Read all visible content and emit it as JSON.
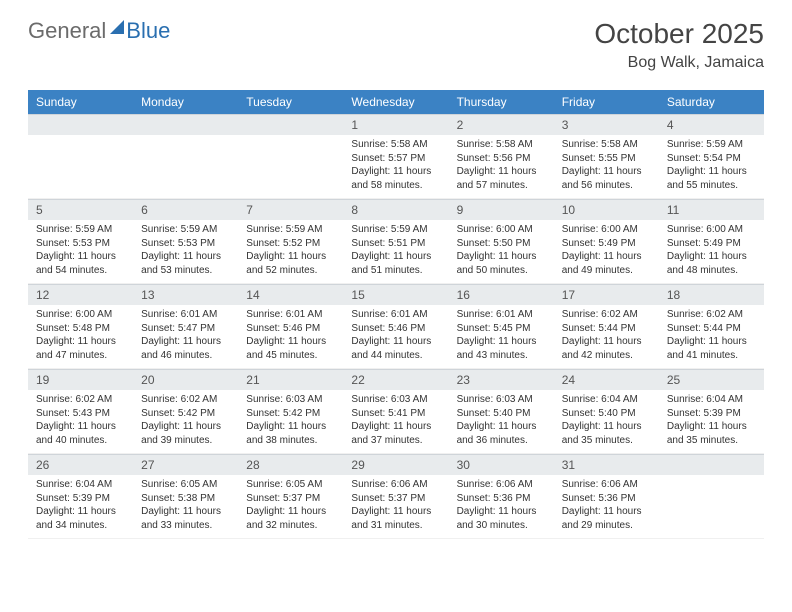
{
  "branding": {
    "word1": "General",
    "word2": "Blue"
  },
  "header": {
    "monthTitle": "October 2025",
    "location": "Bog Walk, Jamaica"
  },
  "colors": {
    "headerBlue": "#3b82c4",
    "lightGray": "#e8ebed",
    "brandBlue": "#2a6fb0",
    "textGray": "#6b6b6b"
  },
  "dayHeaders": [
    "Sunday",
    "Monday",
    "Tuesday",
    "Wednesday",
    "Thursday",
    "Friday",
    "Saturday"
  ],
  "weeks": [
    [
      {
        "empty": true
      },
      {
        "empty": true
      },
      {
        "empty": true
      },
      {
        "num": "1",
        "sunrise": "Sunrise: 5:58 AM",
        "sunset": "Sunset: 5:57 PM",
        "daylight1": "Daylight: 11 hours",
        "daylight2": "and 58 minutes."
      },
      {
        "num": "2",
        "sunrise": "Sunrise: 5:58 AM",
        "sunset": "Sunset: 5:56 PM",
        "daylight1": "Daylight: 11 hours",
        "daylight2": "and 57 minutes."
      },
      {
        "num": "3",
        "sunrise": "Sunrise: 5:58 AM",
        "sunset": "Sunset: 5:55 PM",
        "daylight1": "Daylight: 11 hours",
        "daylight2": "and 56 minutes."
      },
      {
        "num": "4",
        "sunrise": "Sunrise: 5:59 AM",
        "sunset": "Sunset: 5:54 PM",
        "daylight1": "Daylight: 11 hours",
        "daylight2": "and 55 minutes."
      }
    ],
    [
      {
        "num": "5",
        "sunrise": "Sunrise: 5:59 AM",
        "sunset": "Sunset: 5:53 PM",
        "daylight1": "Daylight: 11 hours",
        "daylight2": "and 54 minutes."
      },
      {
        "num": "6",
        "sunrise": "Sunrise: 5:59 AM",
        "sunset": "Sunset: 5:53 PM",
        "daylight1": "Daylight: 11 hours",
        "daylight2": "and 53 minutes."
      },
      {
        "num": "7",
        "sunrise": "Sunrise: 5:59 AM",
        "sunset": "Sunset: 5:52 PM",
        "daylight1": "Daylight: 11 hours",
        "daylight2": "and 52 minutes."
      },
      {
        "num": "8",
        "sunrise": "Sunrise: 5:59 AM",
        "sunset": "Sunset: 5:51 PM",
        "daylight1": "Daylight: 11 hours",
        "daylight2": "and 51 minutes."
      },
      {
        "num": "9",
        "sunrise": "Sunrise: 6:00 AM",
        "sunset": "Sunset: 5:50 PM",
        "daylight1": "Daylight: 11 hours",
        "daylight2": "and 50 minutes."
      },
      {
        "num": "10",
        "sunrise": "Sunrise: 6:00 AM",
        "sunset": "Sunset: 5:49 PM",
        "daylight1": "Daylight: 11 hours",
        "daylight2": "and 49 minutes."
      },
      {
        "num": "11",
        "sunrise": "Sunrise: 6:00 AM",
        "sunset": "Sunset: 5:49 PM",
        "daylight1": "Daylight: 11 hours",
        "daylight2": "and 48 minutes."
      }
    ],
    [
      {
        "num": "12",
        "sunrise": "Sunrise: 6:00 AM",
        "sunset": "Sunset: 5:48 PM",
        "daylight1": "Daylight: 11 hours",
        "daylight2": "and 47 minutes."
      },
      {
        "num": "13",
        "sunrise": "Sunrise: 6:01 AM",
        "sunset": "Sunset: 5:47 PM",
        "daylight1": "Daylight: 11 hours",
        "daylight2": "and 46 minutes."
      },
      {
        "num": "14",
        "sunrise": "Sunrise: 6:01 AM",
        "sunset": "Sunset: 5:46 PM",
        "daylight1": "Daylight: 11 hours",
        "daylight2": "and 45 minutes."
      },
      {
        "num": "15",
        "sunrise": "Sunrise: 6:01 AM",
        "sunset": "Sunset: 5:46 PM",
        "daylight1": "Daylight: 11 hours",
        "daylight2": "and 44 minutes."
      },
      {
        "num": "16",
        "sunrise": "Sunrise: 6:01 AM",
        "sunset": "Sunset: 5:45 PM",
        "daylight1": "Daylight: 11 hours",
        "daylight2": "and 43 minutes."
      },
      {
        "num": "17",
        "sunrise": "Sunrise: 6:02 AM",
        "sunset": "Sunset: 5:44 PM",
        "daylight1": "Daylight: 11 hours",
        "daylight2": "and 42 minutes."
      },
      {
        "num": "18",
        "sunrise": "Sunrise: 6:02 AM",
        "sunset": "Sunset: 5:44 PM",
        "daylight1": "Daylight: 11 hours",
        "daylight2": "and 41 minutes."
      }
    ],
    [
      {
        "num": "19",
        "sunrise": "Sunrise: 6:02 AM",
        "sunset": "Sunset: 5:43 PM",
        "daylight1": "Daylight: 11 hours",
        "daylight2": "and 40 minutes."
      },
      {
        "num": "20",
        "sunrise": "Sunrise: 6:02 AM",
        "sunset": "Sunset: 5:42 PM",
        "daylight1": "Daylight: 11 hours",
        "daylight2": "and 39 minutes."
      },
      {
        "num": "21",
        "sunrise": "Sunrise: 6:03 AM",
        "sunset": "Sunset: 5:42 PM",
        "daylight1": "Daylight: 11 hours",
        "daylight2": "and 38 minutes."
      },
      {
        "num": "22",
        "sunrise": "Sunrise: 6:03 AM",
        "sunset": "Sunset: 5:41 PM",
        "daylight1": "Daylight: 11 hours",
        "daylight2": "and 37 minutes."
      },
      {
        "num": "23",
        "sunrise": "Sunrise: 6:03 AM",
        "sunset": "Sunset: 5:40 PM",
        "daylight1": "Daylight: 11 hours",
        "daylight2": "and 36 minutes."
      },
      {
        "num": "24",
        "sunrise": "Sunrise: 6:04 AM",
        "sunset": "Sunset: 5:40 PM",
        "daylight1": "Daylight: 11 hours",
        "daylight2": "and 35 minutes."
      },
      {
        "num": "25",
        "sunrise": "Sunrise: 6:04 AM",
        "sunset": "Sunset: 5:39 PM",
        "daylight1": "Daylight: 11 hours",
        "daylight2": "and 35 minutes."
      }
    ],
    [
      {
        "num": "26",
        "sunrise": "Sunrise: 6:04 AM",
        "sunset": "Sunset: 5:39 PM",
        "daylight1": "Daylight: 11 hours",
        "daylight2": "and 34 minutes."
      },
      {
        "num": "27",
        "sunrise": "Sunrise: 6:05 AM",
        "sunset": "Sunset: 5:38 PM",
        "daylight1": "Daylight: 11 hours",
        "daylight2": "and 33 minutes."
      },
      {
        "num": "28",
        "sunrise": "Sunrise: 6:05 AM",
        "sunset": "Sunset: 5:37 PM",
        "daylight1": "Daylight: 11 hours",
        "daylight2": "and 32 minutes."
      },
      {
        "num": "29",
        "sunrise": "Sunrise: 6:06 AM",
        "sunset": "Sunset: 5:37 PM",
        "daylight1": "Daylight: 11 hours",
        "daylight2": "and 31 minutes."
      },
      {
        "num": "30",
        "sunrise": "Sunrise: 6:06 AM",
        "sunset": "Sunset: 5:36 PM",
        "daylight1": "Daylight: 11 hours",
        "daylight2": "and 30 minutes."
      },
      {
        "num": "31",
        "sunrise": "Sunrise: 6:06 AM",
        "sunset": "Sunset: 5:36 PM",
        "daylight1": "Daylight: 11 hours",
        "daylight2": "and 29 minutes."
      },
      {
        "empty": true
      }
    ]
  ]
}
